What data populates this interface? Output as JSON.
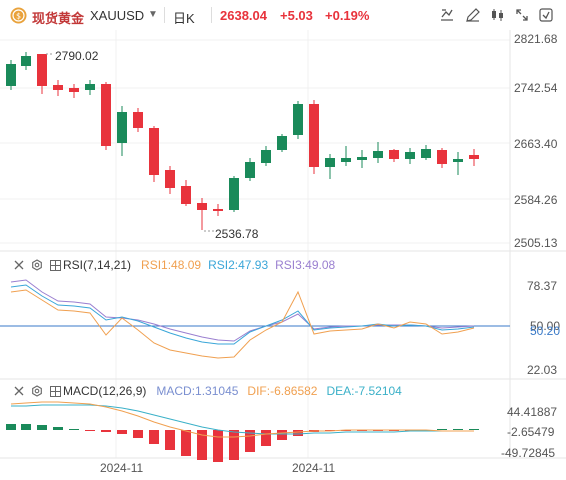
{
  "toolbar": {
    "name": "现货黄金",
    "symbol": "XAUUSD",
    "period": "日K",
    "price": "2638.04",
    "change": "+5.03",
    "change_pct": "+0.19%",
    "accent_color": "#e8333c",
    "icons": [
      "indicator-icon",
      "drawing-icon",
      "candle-type-icon",
      "fullscreen-icon",
      "settings-icon"
    ]
  },
  "main_chart": {
    "price_labels": [
      "2821.68",
      "2742.54",
      "2663.40",
      "2584.26",
      "2505.13"
    ],
    "high_marker": "2790.02",
    "low_marker": "2536.78",
    "up_color": "#1a8a5a",
    "down_color": "#e8333c"
  },
  "rsi": {
    "title": "RSI(7,14,21)",
    "rsi1_label": "RSI1:48.09",
    "rsi2_label": "RSI2:47.93",
    "rsi3_label": "RSI3:49.08",
    "rsi1_color": "#f0a050",
    "rsi2_color": "#3aa6d8",
    "rsi3_color": "#9a7fd0",
    "axis_labels": [
      "78.37",
      "50.00",
      "50.20",
      "22.03"
    ]
  },
  "macd": {
    "title": "MACD(12,26,9)",
    "macd_label": "MACD:1.31045",
    "dif_label": "DIF:-6.86582",
    "dea_label": "DEA:-7.52104",
    "macd_color": "#7a8fd0",
    "dif_color": "#f0a050",
    "dea_color": "#3ab0c8",
    "axis_labels": [
      "44.41887",
      "-2.65479",
      "-49.72845"
    ]
  },
  "x_axis": {
    "labels": [
      "2024-11",
      "2024-11"
    ]
  }
}
